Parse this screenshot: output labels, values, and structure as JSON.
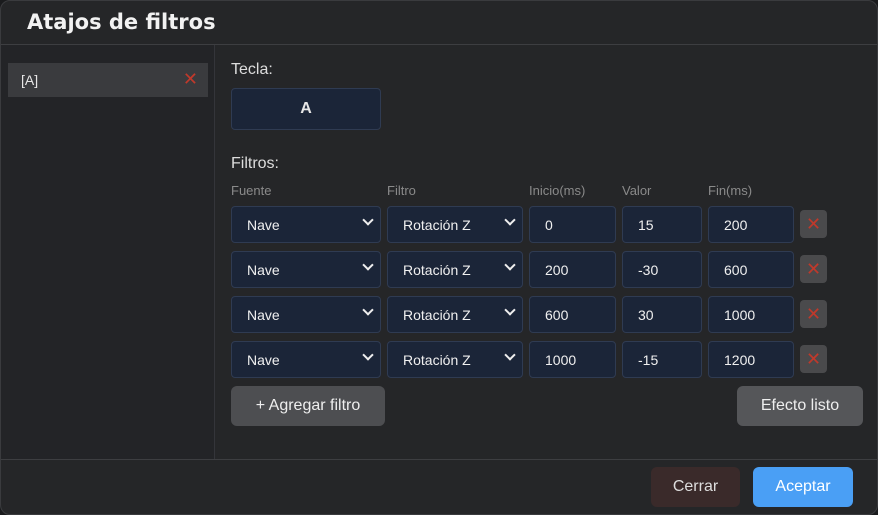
{
  "dialog": {
    "title": "Atajos de filtros"
  },
  "shortcuts": [
    {
      "label": "[A]"
    }
  ],
  "editor": {
    "key_label": "Tecla:",
    "key_value": "A",
    "filters_label": "Filtros:",
    "columns": [
      "Fuente",
      "Filtro",
      "Inicio(ms)",
      "Valor",
      "Fin(ms)"
    ],
    "rows": [
      {
        "source": "Nave",
        "filter": "Rotación Z",
        "start": "0",
        "value": "15",
        "end": "200"
      },
      {
        "source": "Nave",
        "filter": "Rotación Z",
        "start": "200",
        "value": "-30",
        "end": "600"
      },
      {
        "source": "Nave",
        "filter": "Rotación Z",
        "start": "600",
        "value": "30",
        "end": "1000"
      },
      {
        "source": "Nave",
        "filter": "Rotación Z",
        "start": "1000",
        "value": "-15",
        "end": "1200"
      }
    ],
    "add_filter": "+ Agregar filtro",
    "effect_ready": "Efecto listo"
  },
  "footer": {
    "close": "Cerrar",
    "accept": "Aceptar"
  },
  "colors": {
    "accent": "#4a9ff5",
    "danger": "#c0392b"
  }
}
